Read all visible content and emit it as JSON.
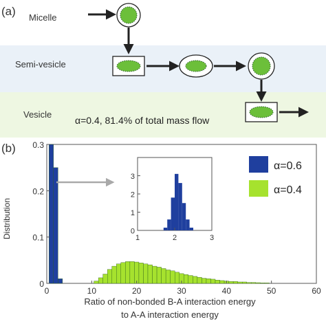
{
  "panel_a": {
    "label": "(a)",
    "stages": [
      {
        "name": "Micelle",
        "bg": "#ffffff"
      },
      {
        "name": "Semi-vesicle",
        "bg": "#eaf1f8"
      },
      {
        "name": "Vesicle",
        "bg": "#eef7e2"
      }
    ],
    "annotation": "α=0.4, 81.4% of total mass flow"
  },
  "panel_b": {
    "label": "(b)"
  },
  "colors": {
    "alpha06": "#1f3f9e",
    "alpha04": "#a6e22e",
    "arrow": "#a9a9a9",
    "axis": "#555555"
  },
  "chart_data": [
    {
      "type": "bar",
      "xlabel": [
        "Ratio of non-bonded B-A interaction energy",
        "to A-A interaction energy"
      ],
      "ylabel": "Distribution",
      "xlim": [
        0,
        60
      ],
      "ylim": [
        0,
        0.3
      ],
      "xticks": [
        0,
        10,
        20,
        30,
        40,
        50,
        60
      ],
      "yticks": [
        0,
        0.1,
        0.2,
        0.3
      ],
      "ytick_labels": [
        "0",
        "0.1",
        "0.2",
        "0.3"
      ],
      "legend": [
        "α=0.6",
        "α=0.4"
      ],
      "legend_position": "top-right",
      "bin_width": 1,
      "series": [
        {
          "name": "α=0.6",
          "x": [
            1,
            2,
            3
          ],
          "values": [
            0.3,
            0.25,
            0.01
          ]
        },
        {
          "name": "α=0.4",
          "x": [
            11,
            12,
            13,
            14,
            15,
            16,
            17,
            18,
            19,
            20,
            21,
            22,
            23,
            24,
            25,
            26,
            27,
            28,
            29,
            30,
            31,
            32,
            33,
            34,
            35,
            36,
            37,
            38,
            39,
            40,
            41,
            42,
            43,
            44,
            45,
            46,
            47,
            48,
            49
          ],
          "values": [
            0.005,
            0.012,
            0.02,
            0.03,
            0.037,
            0.042,
            0.045,
            0.047,
            0.047,
            0.046,
            0.044,
            0.042,
            0.04,
            0.037,
            0.035,
            0.032,
            0.029,
            0.027,
            0.024,
            0.021,
            0.019,
            0.017,
            0.015,
            0.013,
            0.011,
            0.01,
            0.009,
            0.007,
            0.006,
            0.005,
            0.004,
            0.004,
            0.003,
            0.003,
            0.002,
            0.002,
            0.0015,
            0.001,
            0.001
          ]
        }
      ]
    },
    {
      "type": "bar",
      "xlim": [
        1,
        3
      ],
      "ylim": [
        0,
        4
      ],
      "xticks": [
        1,
        2,
        3
      ],
      "yticks": [
        0,
        1,
        2,
        3
      ],
      "bin_width": 0.1,
      "series": [
        {
          "name": "α=0.6",
          "x": [
            1.75,
            1.85,
            1.95,
            2.05,
            2.15,
            2.25,
            2.35,
            2.45
          ],
          "values": [
            0.15,
            0.6,
            1.8,
            3.1,
            2.6,
            1.5,
            0.6,
            0.15
          ]
        }
      ]
    }
  ]
}
